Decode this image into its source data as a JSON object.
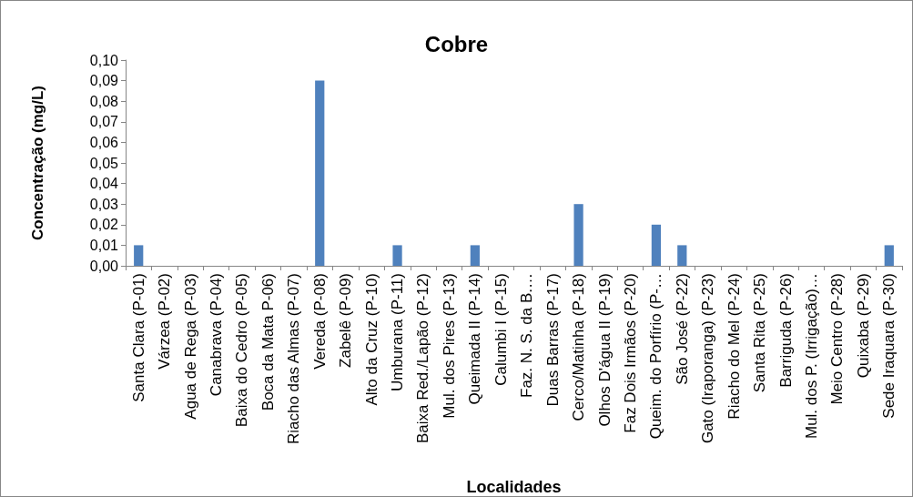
{
  "chart_data": {
    "type": "bar",
    "title": "Cobre",
    "xlabel": "Localidades",
    "ylabel": "Concentração (mg/L)",
    "categories": [
      "Santa Clara (P-01)",
      "Várzea (P-02)",
      "Agua de Rega (P-03)",
      "Canabrava (P-04)",
      "Baixa do Cedro (P-05)",
      "Boca da Mata P-06)",
      "Riacho das Almas (P-07)",
      "Vereda (P-08)",
      "Zabelê (P-09)",
      "Alto da Cruz (P-10)",
      "Umburana (P-11)",
      "Baixa Red./Lapão (P-12)",
      "Mul. dos Pires (P-13)",
      "Queimada II (P-14)",
      "Calumbi I (P-15)",
      "Faz. N. S. da B.…",
      "Duas Barras (P-17)",
      "Cerco/Matinha (P-18)",
      "Olhos D'água II (P-19)",
      "Faz Dois Irmãos (P-20)",
      "Queim. do Porfírio (P-…",
      "São José (P-22)",
      "Gato (Iraporanga) (P-23)",
      "Riacho do Mel (P-24)",
      "Santa Rita (P-25)",
      "Barriguda (P-26)",
      "Mul. dos P. (Irrigação)…",
      "Meio Centro (P-28)",
      "Quixaba (P-29)",
      "Sede Iraquara (P-30)"
    ],
    "values": [
      0.01,
      0,
      0,
      0,
      0,
      0,
      0,
      0.09,
      0,
      0,
      0.01,
      0,
      0,
      0.01,
      0,
      0,
      0,
      0.03,
      0,
      0,
      0.02,
      0.01,
      0,
      0,
      0,
      0,
      0,
      0,
      0,
      0.01
    ],
    "color": "#4f81bd",
    "ylim": [
      0,
      0.1
    ],
    "yticks": [
      {
        "value": 0,
        "label": "0,00"
      },
      {
        "value": 0.01,
        "label": "0,01"
      },
      {
        "value": 0.02,
        "label": "0,02"
      },
      {
        "value": 0.03,
        "label": "0,03"
      },
      {
        "value": 0.04,
        "label": "0,04"
      },
      {
        "value": 0.05,
        "label": "0,05"
      },
      {
        "value": 0.06,
        "label": "0,06"
      },
      {
        "value": 0.07,
        "label": "0,07"
      },
      {
        "value": 0.08,
        "label": "0,08"
      },
      {
        "value": 0.09,
        "label": "0,09"
      },
      {
        "value": 0.1,
        "label": "0,10"
      }
    ],
    "grid": false
  }
}
